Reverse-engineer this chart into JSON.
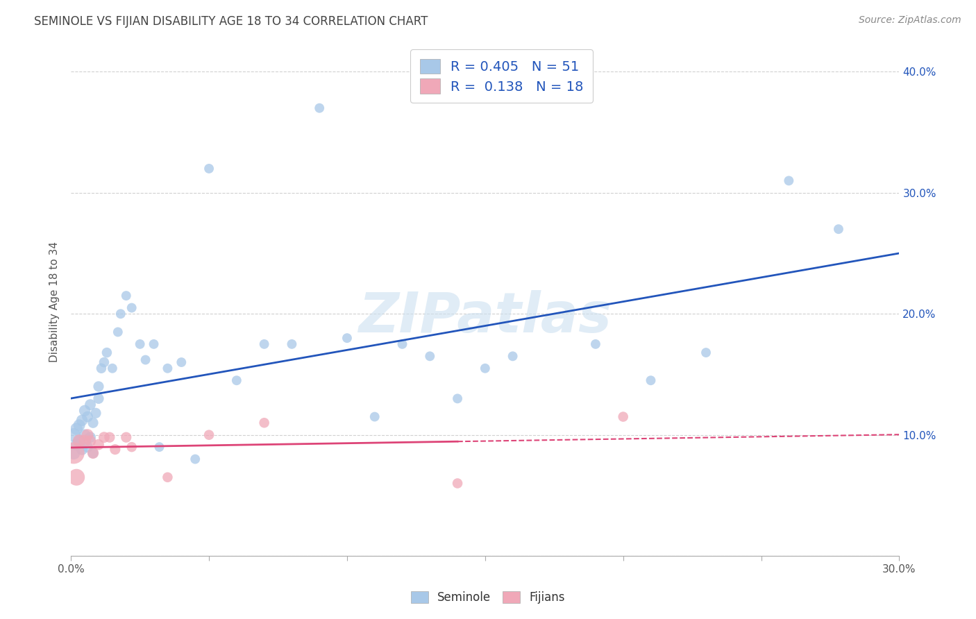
{
  "title": "SEMINOLE VS FIJIAN DISABILITY AGE 18 TO 34 CORRELATION CHART",
  "source": "Source: ZipAtlas.com",
  "ylabel": "Disability Age 18 to 34",
  "xlim": [
    0.0,
    0.3
  ],
  "ylim": [
    0.0,
    0.42
  ],
  "x_ticks": [
    0.0,
    0.05,
    0.1,
    0.15,
    0.2,
    0.25,
    0.3
  ],
  "x_tick_labels": [
    "0.0%",
    "",
    "",
    "",
    "",
    "",
    "30.0%"
  ],
  "y_ticks": [
    0.0,
    0.1,
    0.2,
    0.3,
    0.4
  ],
  "y_tick_labels_right": [
    "",
    "10.0%",
    "20.0%",
    "30.0%",
    "40.0%"
  ],
  "seminole_R": 0.405,
  "seminole_N": 51,
  "fijian_R": 0.138,
  "fijian_N": 18,
  "seminole_color": "#a8c8e8",
  "fijian_color": "#f0a8b8",
  "seminole_line_color": "#2255bb",
  "fijian_line_color": "#dd4477",
  "legend_labels": [
    "Seminole",
    "Fijians"
  ],
  "seminole_x": [
    0.001,
    0.001,
    0.002,
    0.002,
    0.003,
    0.003,
    0.004,
    0.004,
    0.005,
    0.005,
    0.006,
    0.006,
    0.007,
    0.007,
    0.008,
    0.008,
    0.009,
    0.01,
    0.01,
    0.011,
    0.012,
    0.013,
    0.015,
    0.017,
    0.018,
    0.02,
    0.022,
    0.025,
    0.027,
    0.03,
    0.032,
    0.035,
    0.04,
    0.045,
    0.05,
    0.06,
    0.07,
    0.08,
    0.09,
    0.1,
    0.11,
    0.12,
    0.13,
    0.14,
    0.15,
    0.16,
    0.19,
    0.21,
    0.23,
    0.26,
    0.278
  ],
  "seminole_y": [
    0.1,
    0.085,
    0.105,
    0.092,
    0.095,
    0.108,
    0.088,
    0.112,
    0.1,
    0.12,
    0.09,
    0.115,
    0.125,
    0.098,
    0.11,
    0.085,
    0.118,
    0.13,
    0.14,
    0.155,
    0.16,
    0.168,
    0.155,
    0.185,
    0.2,
    0.215,
    0.205,
    0.175,
    0.162,
    0.175,
    0.09,
    0.155,
    0.16,
    0.08,
    0.32,
    0.145,
    0.175,
    0.175,
    0.37,
    0.18,
    0.115,
    0.175,
    0.165,
    0.13,
    0.155,
    0.165,
    0.175,
    0.145,
    0.168,
    0.31,
    0.27
  ],
  "fijian_x": [
    0.001,
    0.002,
    0.003,
    0.005,
    0.006,
    0.007,
    0.008,
    0.01,
    0.012,
    0.014,
    0.016,
    0.02,
    0.022,
    0.035,
    0.05,
    0.07,
    0.14,
    0.2
  ],
  "fijian_y": [
    0.085,
    0.065,
    0.095,
    0.095,
    0.1,
    0.095,
    0.085,
    0.092,
    0.098,
    0.098,
    0.088,
    0.098,
    0.09,
    0.065,
    0.1,
    0.11,
    0.06,
    0.115
  ],
  "seminole_sizes": [
    200,
    180,
    160,
    150,
    150,
    150,
    140,
    140,
    140,
    140,
    130,
    130,
    130,
    130,
    120,
    120,
    120,
    120,
    120,
    110,
    110,
    110,
    100,
    100,
    100,
    100,
    100,
    100,
    100,
    100,
    100,
    100,
    100,
    100,
    100,
    100,
    100,
    100,
    100,
    100,
    100,
    100,
    100,
    100,
    100,
    100,
    100,
    100,
    100,
    100,
    100
  ],
  "fijian_sizes": [
    500,
    300,
    180,
    160,
    150,
    140,
    140,
    130,
    130,
    120,
    120,
    120,
    110,
    110,
    110,
    110,
    110,
    110
  ],
  "watermark_text": "ZIPatlas",
  "grid_color": "#d0d0d0",
  "grid_style": "--",
  "fijian_line_solid_end": 0.14,
  "fijian_line_dashed_end": 0.3
}
